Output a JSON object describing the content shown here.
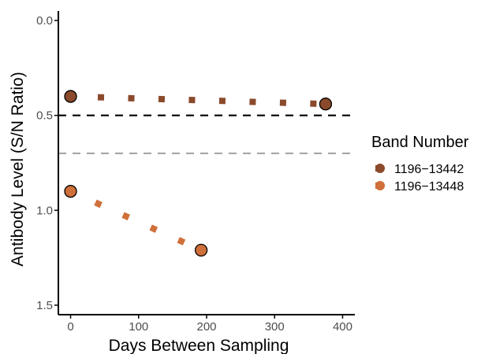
{
  "chart_data": {
    "type": "scatter",
    "title": "",
    "xlabel": "Days Between Sampling",
    "ylabel": "Antibody Level (S/N Ratio)",
    "xlim": [
      -18,
      418
    ],
    "ylim": [
      1.55,
      -0.05
    ],
    "y_reversed": true,
    "x_ticks": [
      0,
      100,
      200,
      300,
      400
    ],
    "y_ticks": [
      0.0,
      0.5,
      1.0,
      1.5
    ],
    "x_tick_labels": [
      "0",
      "100",
      "200",
      "300",
      "400"
    ],
    "y_tick_labels": [
      "0.0",
      "0.5",
      "1.0",
      "1.5"
    ],
    "grid": false,
    "legend": {
      "title": "Band Number",
      "position": "right"
    },
    "reference_lines": [
      {
        "y": 0.5,
        "style": "dashed",
        "color": "#000000"
      },
      {
        "y": 0.7,
        "style": "dashed",
        "color": "#a6a6a6"
      }
    ],
    "series": [
      {
        "name": "1196−13442",
        "color": "#8b4a2b",
        "points": [
          {
            "x": 0,
            "y": 0.4
          },
          {
            "x": 375,
            "y": 0.44
          }
        ],
        "connector": "dotted"
      },
      {
        "name": "1196−13448",
        "color": "#cf6f3a",
        "points": [
          {
            "x": 0,
            "y": 0.9
          },
          {
            "x": 192,
            "y": 1.21
          }
        ],
        "connector": "dotted"
      }
    ]
  }
}
